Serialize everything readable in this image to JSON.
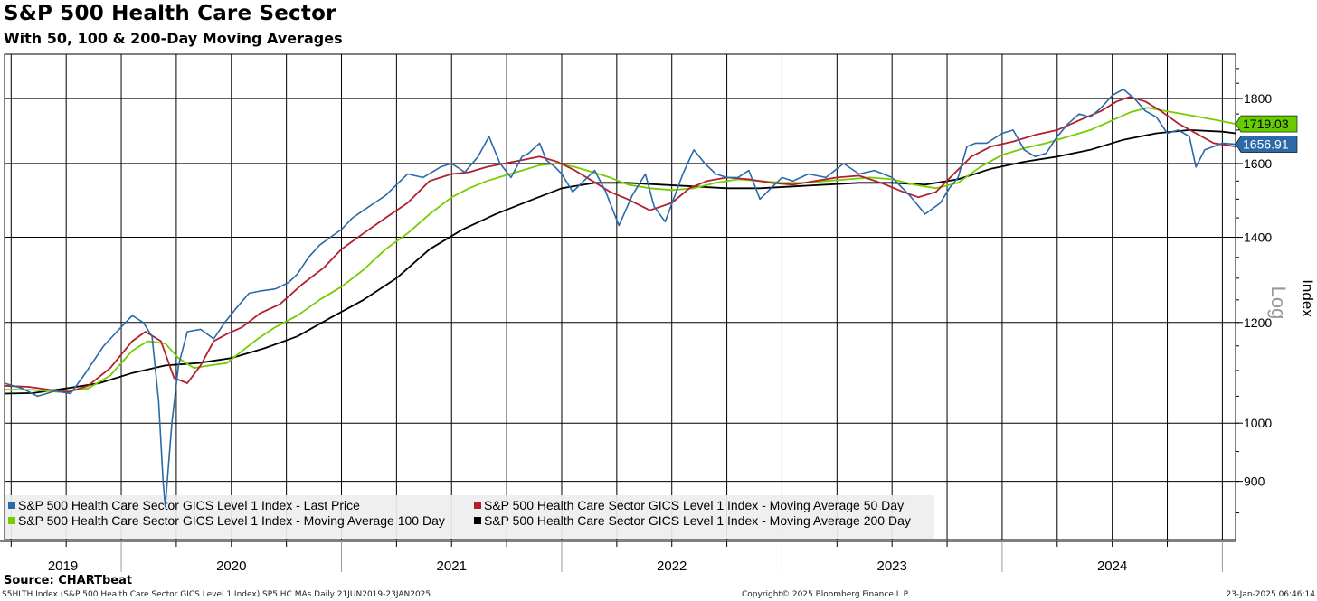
{
  "chart_data": {
    "type": "line",
    "title": "S&P 500 Health Care Sector",
    "subtitle": "With 50, 100 & 200-Day Moving Averages",
    "ylabel": "Index",
    "scale_label": "Log",
    "y_scale": "log",
    "ylim": [
      810,
      1950
    ],
    "yticks": [
      900,
      1000,
      1200,
      1400,
      1600,
      1800
    ],
    "x_years": [
      "2019",
      "2020",
      "2021",
      "2022",
      "2023",
      "2024"
    ],
    "x_range": [
      2019.47,
      2025.06
    ],
    "grid": true,
    "legend_position": "bottom-left",
    "last_value_labels": [
      {
        "text": "1719.03",
        "color": "#66cc00",
        "value": 1719.03
      },
      {
        "text": "1656.91",
        "color": "#2a6aa8",
        "value": 1656.91
      }
    ],
    "series": [
      {
        "name": "S&P 500 Health Care Sector GICS Level 1 Index - Last Price",
        "color": "#2a6aa8",
        "x": [
          2019.47,
          2019.55,
          2019.62,
          2019.7,
          2019.77,
          2019.83,
          2019.92,
          2020.0,
          2020.05,
          2020.1,
          2020.14,
          2020.17,
          2020.19,
          2020.2,
          2020.23,
          2020.26,
          2020.3,
          2020.36,
          2020.42,
          2020.47,
          2020.52,
          2020.58,
          2020.63,
          2020.7,
          2020.76,
          2020.8,
          2020.85,
          2020.9,
          2020.95,
          2021.0,
          2021.05,
          2021.1,
          2021.15,
          2021.2,
          2021.3,
          2021.37,
          2021.45,
          2021.5,
          2021.56,
          2021.62,
          2021.67,
          2021.72,
          2021.77,
          2021.82,
          2021.85,
          2021.9,
          2021.93,
          2021.97,
          2022.0,
          2022.05,
          2022.1,
          2022.15,
          2022.2,
          2022.26,
          2022.32,
          2022.38,
          2022.42,
          2022.47,
          2022.55,
          2022.6,
          2022.65,
          2022.7,
          2022.75,
          2022.8,
          2022.85,
          2022.9,
          2022.95,
          2023.0,
          2023.05,
          2023.12,
          2023.2,
          2023.28,
          2023.35,
          2023.42,
          2023.5,
          2023.58,
          2023.65,
          2023.72,
          2023.76,
          2023.8,
          2023.84,
          2023.88,
          2023.93,
          2024.0,
          2024.05,
          2024.1,
          2024.15,
          2024.2,
          2024.25,
          2024.3,
          2024.35,
          2024.4,
          2024.45,
          2024.5,
          2024.55,
          2024.6,
          2024.65,
          2024.7,
          2024.75,
          2024.8,
          2024.85,
          2024.88,
          2024.92,
          2024.96,
          2025.0,
          2025.06
        ],
        "values": [
          1075,
          1065,
          1050,
          1060,
          1055,
          1090,
          1150,
          1190,
          1215,
          1200,
          1170,
          1040,
          900,
          860,
          1000,
          1110,
          1180,
          1185,
          1165,
          1200,
          1230,
          1265,
          1270,
          1275,
          1290,
          1310,
          1350,
          1380,
          1400,
          1420,
          1450,
          1470,
          1490,
          1510,
          1570,
          1560,
          1590,
          1600,
          1575,
          1620,
          1680,
          1600,
          1560,
          1620,
          1630,
          1660,
          1610,
          1590,
          1570,
          1520,
          1550,
          1580,
          1520,
          1430,
          1510,
          1570,
          1480,
          1440,
          1570,
          1640,
          1600,
          1570,
          1560,
          1560,
          1580,
          1500,
          1530,
          1560,
          1550,
          1570,
          1560,
          1600,
          1570,
          1580,
          1560,
          1510,
          1460,
          1490,
          1530,
          1560,
          1650,
          1660,
          1660,
          1690,
          1700,
          1640,
          1620,
          1630,
          1680,
          1720,
          1750,
          1740,
          1770,
          1810,
          1830,
          1800,
          1760,
          1740,
          1690,
          1700,
          1680,
          1590,
          1640,
          1650,
          1660,
          1656.91
        ]
      },
      {
        "name": "S&P 500 Health Care Sector GICS Level 1 Index - Moving Average 50 Day",
        "color": "#b22030",
        "x": [
          2019.47,
          2019.58,
          2019.68,
          2019.76,
          2019.85,
          2019.95,
          2020.05,
          2020.11,
          2020.18,
          2020.24,
          2020.3,
          2020.36,
          2020.42,
          2020.48,
          2020.55,
          2020.63,
          2020.72,
          2020.82,
          2020.92,
          2021.0,
          2021.1,
          2021.2,
          2021.3,
          2021.4,
          2021.5,
          2021.58,
          2021.66,
          2021.74,
          2021.82,
          2021.9,
          2021.98,
          2022.06,
          2022.14,
          2022.22,
          2022.3,
          2022.4,
          2022.5,
          2022.58,
          2022.66,
          2022.75,
          2022.85,
          2022.95,
          2023.05,
          2023.15,
          2023.25,
          2023.35,
          2023.45,
          2023.55,
          2023.62,
          2023.7,
          2023.78,
          2023.86,
          2023.95,
          2024.05,
          2024.15,
          2024.25,
          2024.35,
          2024.45,
          2024.52,
          2024.58,
          2024.65,
          2024.72,
          2024.8,
          2024.88,
          2024.96,
          2025.06
        ],
        "values": [
          1070,
          1068,
          1062,
          1058,
          1070,
          1105,
          1160,
          1180,
          1160,
          1085,
          1075,
          1110,
          1160,
          1175,
          1190,
          1220,
          1240,
          1285,
          1325,
          1370,
          1410,
          1450,
          1490,
          1550,
          1570,
          1575,
          1590,
          1600,
          1610,
          1620,
          1605,
          1580,
          1550,
          1520,
          1500,
          1470,
          1490,
          1530,
          1550,
          1560,
          1555,
          1545,
          1540,
          1550,
          1560,
          1565,
          1545,
          1520,
          1505,
          1520,
          1570,
          1620,
          1650,
          1665,
          1685,
          1700,
          1730,
          1760,
          1790,
          1805,
          1790,
          1760,
          1720,
          1690,
          1660,
          1650
        ]
      },
      {
        "name": "S&P 500 Health Care Sector GICS Level 1 Index - Moving Average 100 Day",
        "color": "#77cc00",
        "x": [
          2019.47,
          2019.6,
          2019.72,
          2019.85,
          2019.95,
          2020.05,
          2020.12,
          2020.2,
          2020.26,
          2020.33,
          2020.4,
          2020.48,
          2020.55,
          2020.62,
          2020.7,
          2020.8,
          2020.9,
          2021.0,
          2021.1,
          2021.2,
          2021.3,
          2021.4,
          2021.5,
          2021.58,
          2021.66,
          2021.74,
          2021.82,
          2021.9,
          2021.98,
          2022.06,
          2022.14,
          2022.22,
          2022.3,
          2022.4,
          2022.5,
          2022.6,
          2022.7,
          2022.8,
          2022.9,
          2023.0,
          2023.1,
          2023.2,
          2023.3,
          2023.4,
          2023.5,
          2023.6,
          2023.7,
          2023.8,
          2023.9,
          2024.0,
          2024.1,
          2024.2,
          2024.3,
          2024.4,
          2024.5,
          2024.58,
          2024.66,
          2024.74,
          2024.82,
          2024.9,
          2024.98,
          2025.06
        ],
        "values": [
          1063,
          1062,
          1058,
          1065,
          1090,
          1140,
          1160,
          1155,
          1125,
          1105,
          1110,
          1115,
          1140,
          1165,
          1190,
          1215,
          1250,
          1280,
          1320,
          1370,
          1410,
          1460,
          1505,
          1530,
          1550,
          1565,
          1580,
          1595,
          1600,
          1590,
          1575,
          1560,
          1540,
          1530,
          1525,
          1530,
          1545,
          1555,
          1550,
          1545,
          1545,
          1550,
          1555,
          1560,
          1555,
          1540,
          1530,
          1545,
          1590,
          1625,
          1645,
          1660,
          1680,
          1700,
          1730,
          1755,
          1770,
          1760,
          1750,
          1740,
          1730,
          1719.03
        ]
      },
      {
        "name": "S&P 500 Health Care Sector GICS Level 1 Index - Moving Average 200 Day",
        "color": "#000000",
        "x": [
          2019.47,
          2019.6,
          2019.75,
          2019.9,
          2020.05,
          2020.2,
          2020.35,
          2020.5,
          2020.65,
          2020.8,
          2020.95,
          2021.1,
          2021.25,
          2021.4,
          2021.55,
          2021.7,
          2021.85,
          2022.0,
          2022.15,
          2022.3,
          2022.45,
          2022.6,
          2022.75,
          2022.9,
          2023.05,
          2023.2,
          2023.35,
          2023.5,
          2023.65,
          2023.8,
          2023.95,
          2024.1,
          2024.25,
          2024.4,
          2024.55,
          2024.7,
          2024.85,
          2025.0,
          2025.06
        ],
        "values": [
          1055,
          1056,
          1065,
          1075,
          1095,
          1110,
          1115,
          1125,
          1145,
          1170,
          1210,
          1250,
          1300,
          1370,
          1420,
          1460,
          1495,
          1530,
          1545,
          1545,
          1540,
          1535,
          1530,
          1530,
          1535,
          1540,
          1545,
          1545,
          1540,
          1555,
          1585,
          1605,
          1620,
          1640,
          1670,
          1690,
          1700,
          1695,
          1690
        ]
      }
    ]
  },
  "source": "Source: CHARTbeat",
  "footer": {
    "left": "S5HLTH Index (S&P 500 Health Care Sector GICS Level 1 Index) SP5 HC MAs  Daily 21JUN2019-23JAN2025",
    "center": "Copyright© 2025 Bloomberg Finance L.P.",
    "right": "23-Jan-2025 06:46:14"
  }
}
